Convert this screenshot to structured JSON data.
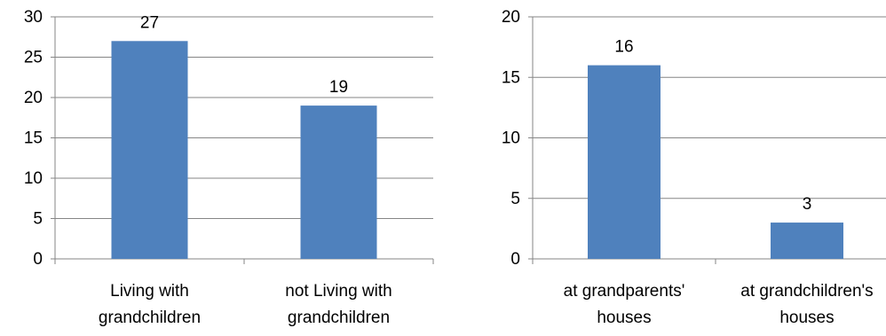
{
  "chart_data": [
    {
      "type": "bar",
      "categories": [
        [
          "Living with",
          "grandchildren"
        ],
        [
          "not Living with",
          "grandchildren"
        ]
      ],
      "values": [
        27,
        19
      ],
      "data_labels": [
        "27",
        "19"
      ],
      "ylim": [
        0,
        30
      ],
      "yticks": [
        "0",
        "5",
        "10",
        "15",
        "20",
        "25",
        "30"
      ],
      "grid": true,
      "legend": "none",
      "bar_color": "#4F81BD"
    },
    {
      "type": "bar",
      "categories": [
        [
          "at grandparents'",
          "houses"
        ],
        [
          "at grandchildren's",
          "houses"
        ]
      ],
      "values": [
        16,
        3
      ],
      "data_labels": [
        "16",
        "3"
      ],
      "ylim": [
        0,
        20
      ],
      "yticks": [
        "0",
        "5",
        "10",
        "15",
        "20"
      ],
      "grid": true,
      "legend": "none",
      "bar_color": "#4F81BD"
    }
  ]
}
